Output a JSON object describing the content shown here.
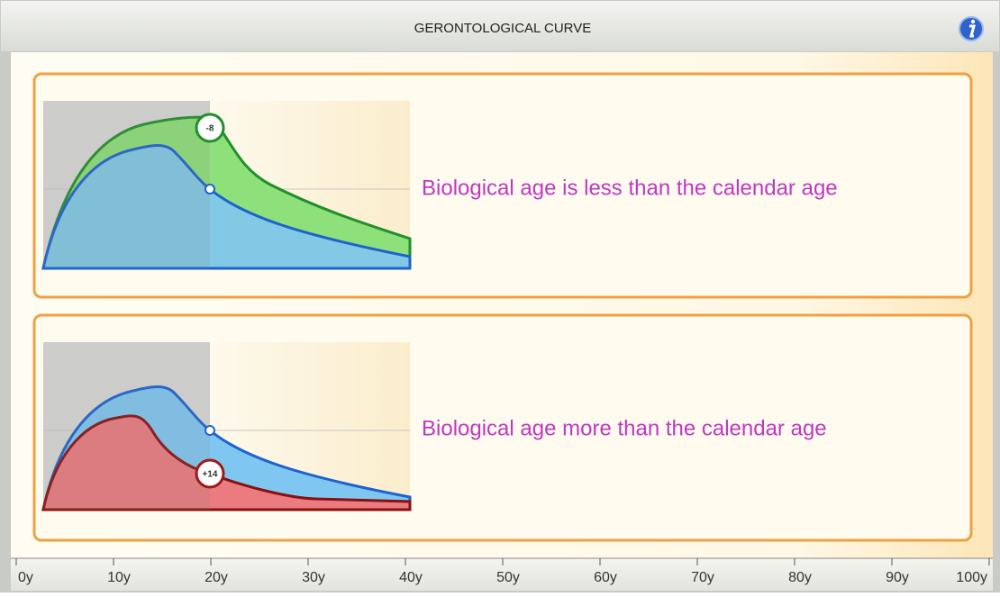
{
  "header": {
    "title": "GERONTOLOGICAL CURVE"
  },
  "panels": [
    {
      "badge": "-8",
      "text": "Biological age is less than the calendar age"
    },
    {
      "badge": "+14",
      "text": "Biological age more than the calendar age"
    }
  ],
  "axis": {
    "labels": [
      "0y",
      "10y",
      "20y",
      "30y",
      "40y",
      "50y",
      "60y",
      "70y",
      "80y",
      "90y",
      "100y"
    ]
  }
}
